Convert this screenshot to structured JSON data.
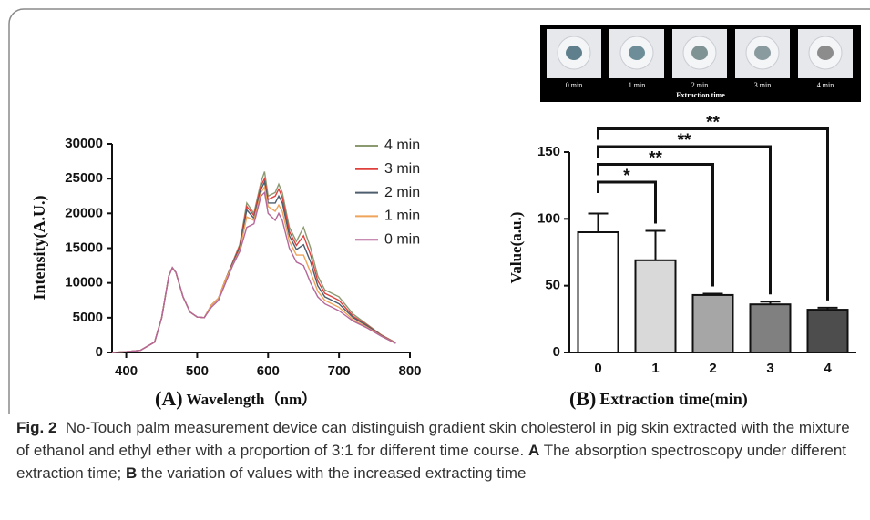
{
  "chart_data": [
    {
      "type": "line",
      "panel_label": "(A)",
      "x_label": "Wavelength（nm）",
      "y_label": "Intensity(A.U.)",
      "x": [
        380,
        400,
        420,
        440,
        450,
        460,
        465,
        470,
        480,
        490,
        500,
        510,
        520,
        530,
        540,
        550,
        560,
        570,
        580,
        590,
        595,
        600,
        610,
        615,
        620,
        630,
        640,
        650,
        660,
        670,
        680,
        690,
        700,
        720,
        740,
        760,
        780
      ],
      "series": [
        {
          "name": "4 min",
          "color": "#8c9a72",
          "values": [
            0,
            100,
            300,
            1500,
            5000,
            11000,
            12200,
            11500,
            8000,
            5800,
            5100,
            5000,
            6800,
            7800,
            10500,
            13000,
            15500,
            21500,
            20000,
            24500,
            26000,
            22500,
            23000,
            24200,
            23000,
            18000,
            16000,
            18000,
            15000,
            11000,
            9000,
            8500,
            8000,
            5500,
            4000,
            2500,
            1400
          ]
        },
        {
          "name": "3 min",
          "color": "#e0403c",
          "values": [
            0,
            100,
            300,
            1500,
            5000,
            11000,
            12200,
            11500,
            8000,
            5800,
            5100,
            5000,
            6800,
            7800,
            10500,
            12900,
            15300,
            21000,
            19700,
            24000,
            25000,
            22000,
            22500,
            23500,
            22300,
            17400,
            15400,
            16800,
            14000,
            10300,
            8500,
            8000,
            7500,
            5200,
            3900,
            2450,
            1380
          ]
        },
        {
          "name": "2 min",
          "color": "#4d5e6e",
          "values": [
            0,
            100,
            300,
            1500,
            5000,
            11000,
            12200,
            11500,
            8000,
            5800,
            5100,
            5000,
            6800,
            7800,
            10500,
            12800,
            15000,
            20500,
            19300,
            23500,
            24500,
            21500,
            21500,
            22500,
            21500,
            16800,
            14800,
            15500,
            13000,
            9600,
            8000,
            7500,
            7000,
            5000,
            3800,
            2400,
            1350
          ]
        },
        {
          "name": "1 min",
          "color": "#eea45a",
          "values": [
            0,
            100,
            300,
            1500,
            5000,
            11000,
            12200,
            11500,
            8000,
            5800,
            5100,
            5000,
            6800,
            7800,
            10500,
            12600,
            14700,
            19500,
            19000,
            23000,
            23800,
            21000,
            20300,
            21200,
            20300,
            16000,
            14000,
            14000,
            11500,
            8800,
            7500,
            7000,
            6500,
            4700,
            3600,
            2350,
            1320
          ]
        },
        {
          "name": "0 min",
          "color": "#b5679a",
          "values": [
            0,
            100,
            300,
            1500,
            5000,
            11000,
            12200,
            11500,
            8000,
            5800,
            5100,
            5000,
            6500,
            7500,
            10000,
            12500,
            14500,
            18000,
            18500,
            22500,
            23000,
            20000,
            19000,
            20000,
            19000,
            15000,
            13000,
            12500,
            10000,
            8000,
            7000,
            6500,
            6000,
            4500,
            3500,
            2300,
            1300
          ]
        }
      ],
      "xlim": [
        380,
        800
      ],
      "xticks": [
        400,
        500,
        600,
        700,
        800
      ],
      "ylim": [
        0,
        30000
      ],
      "yticks": [
        0,
        5000,
        10000,
        15000,
        20000,
        25000,
        30000
      ]
    },
    {
      "type": "bar",
      "panel_label": "(B)",
      "x_label": "Extraction time(min)",
      "y_label": "Value(a.u.)",
      "categories": [
        "0",
        "1",
        "2",
        "3",
        "4"
      ],
      "values": [
        90,
        69,
        43,
        36,
        32
      ],
      "errors": [
        14,
        22,
        1,
        2,
        1.5
      ],
      "colors": [
        "#ffffff",
        "#d9d9d9",
        "#a6a6a6",
        "#808080",
        "#4d4d4d"
      ],
      "significance": [
        "*",
        "**",
        "**",
        "**"
      ],
      "ylim": [
        0,
        150
      ],
      "yticks": [
        0,
        50,
        100,
        150
      ]
    }
  ],
  "photo_strip": {
    "labels": [
      "0 min",
      "1 min",
      "2 min",
      "3 min",
      "4 min"
    ],
    "title": "Extraction time"
  },
  "caption": {
    "label": "Fig. 2",
    "text": "No-Touch palm measurement device can distinguish gradient skin cholesterol in pig skin extracted with the mixture of ethanol and ethyl ether with a proportion of 3:1 for different time course.",
    "a_label": "A",
    "a_text": "The absorption spectroscopy under different extraction time;",
    "b_label": "B",
    "b_text": "the variation of values with the increased extracting time"
  }
}
